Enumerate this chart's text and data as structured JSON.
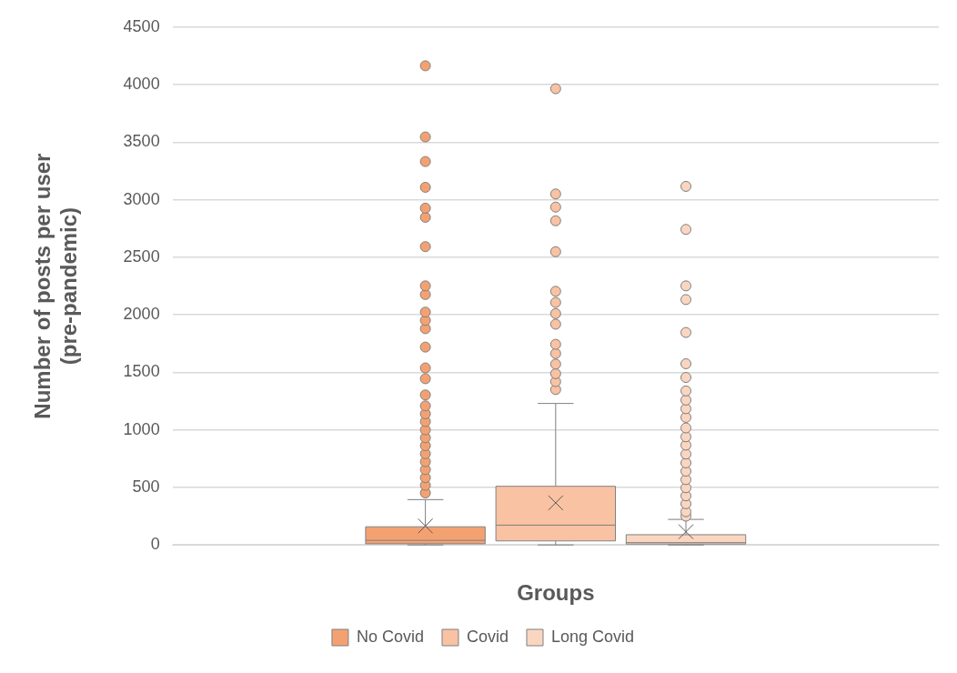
{
  "chart_data": {
    "type": "box",
    "xlabel": "Groups",
    "ylabel": "Number of posts per user\n(pre-pandemic)",
    "categories": [
      null
    ],
    "ylim": [
      0,
      4500
    ],
    "yticks": [
      0,
      500,
      1000,
      1500,
      2000,
      2500,
      3000,
      3500,
      4000,
      4500
    ],
    "grid": "y",
    "legend": "bottom",
    "series": [
      {
        "name": "No Covid",
        "color": "#f4a172",
        "boxes": [
          {
            "low": 0,
            "q1": 10,
            "median": 40,
            "q3": 158,
            "high": 394,
            "mean": 165,
            "outliers": [
              452,
              519,
              585,
              655,
              724,
              793,
              863,
              932,
              1001,
              1073,
              1140,
              1209,
              1304,
              1445,
              1539,
              1720,
              1880,
              1952,
              2024,
              2177,
              2252,
              2593,
              2848,
              2928,
              3109,
              3333,
              3547,
              4165
            ]
          }
        ]
      },
      {
        "name": "Covid",
        "color": "#f8c2a3",
        "boxes": [
          {
            "low": 0,
            "q1": 35,
            "median": 172,
            "q3": 510,
            "high": 1230,
            "mean": 366,
            "outliers": [
              1351,
              1420,
              1489,
              1572,
              1664,
              1744,
              1919,
              2011,
              2108,
              2205,
              2549,
              2818,
              2937,
              3051,
              3966
            ]
          }
        ]
      },
      {
        "name": "Long Covid",
        "color": "#fad6c1",
        "boxes": [
          {
            "low": 0,
            "q1": 8,
            "median": 20,
            "q3": 89,
            "high": 222,
            "mean": 115,
            "outliers": [
              250,
              289,
              358,
              427,
              497,
              568,
              641,
              713,
              790,
              868,
              940,
              1017,
              1109,
              1184,
              1259,
              1339,
              1456,
              1575,
              1847,
              2133,
              2252,
              2743,
              3117
            ]
          }
        ]
      }
    ]
  }
}
